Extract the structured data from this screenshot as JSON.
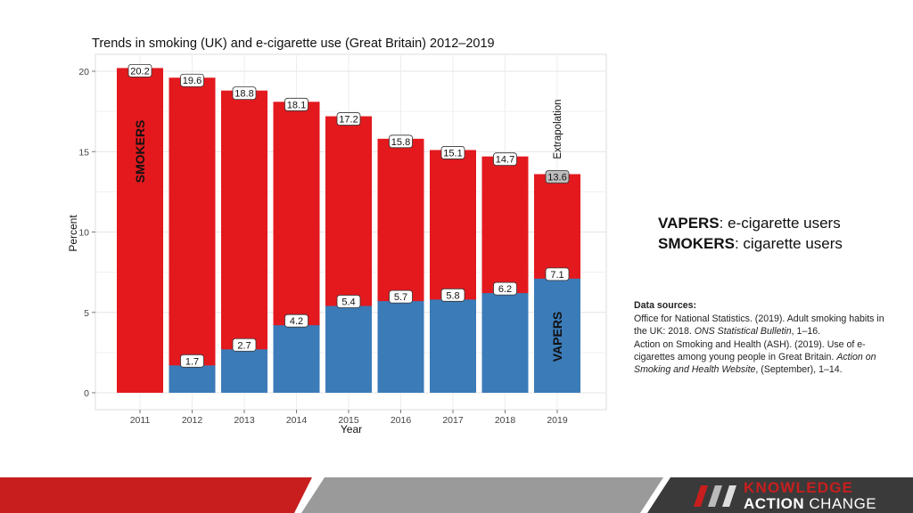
{
  "chart_data": {
    "type": "bar",
    "stacked": true,
    "title": "Trends in smoking (UK) and e-cigarette use (Great Britain) 2012–2019",
    "xlabel": "Year",
    "ylabel": "Percent",
    "categories": [
      "2011",
      "2012",
      "2013",
      "2014",
      "2015",
      "2016",
      "2017",
      "2018",
      "2019"
    ],
    "ylim": [
      0,
      21
    ],
    "yticks": [
      0,
      5,
      10,
      15,
      20
    ],
    "grid": true,
    "series": [
      {
        "name": "VAPERS",
        "color": "#3b7bb8",
        "values": [
          null,
          1.7,
          2.7,
          4.2,
          5.4,
          5.7,
          5.8,
          6.2,
          7.1
        ]
      },
      {
        "name": "SMOKERS",
        "color": "#e3191e",
        "values": [
          20.2,
          19.6,
          18.8,
          18.1,
          17.2,
          15.8,
          15.1,
          14.7,
          13.6
        ]
      }
    ],
    "extrapolated_category": "2019",
    "annotations": {
      "extrapolation": "Extrapolation"
    }
  },
  "legend": {
    "vapers_term": "VAPERS",
    "vapers_desc": ": e-cigarette users",
    "smokers_term": "SMOKERS",
    "smokers_desc": ": cigarette users"
  },
  "sources": {
    "heading": "Data sources:",
    "ref1_plain": "Office for National Statistics. (2019). Adult smoking habits in the UK:  2018. ",
    "ref1_italic": "ONS Statistical Bulletin",
    "ref1_tail": ", 1–16.",
    "ref2_plain": "Action on Smoking and Health (ASH).  (2019).  Use of e-cigarettes among young people in Great Britain. ",
    "ref2_italic": "Action on Smoking and Health Website",
    "ref2_tail": ", (September), 1–14."
  },
  "brand": {
    "line1": "KNOWLEDGE",
    "line2_bold": "ACTION",
    "line2_rest": " CHANGE"
  },
  "colors": {
    "smokers": "#e3191e",
    "vapers": "#3b7bb8",
    "footer_red": "#c81e1e",
    "footer_gray": "#9a9a9a",
    "footer_dark": "#3a3a3a"
  }
}
